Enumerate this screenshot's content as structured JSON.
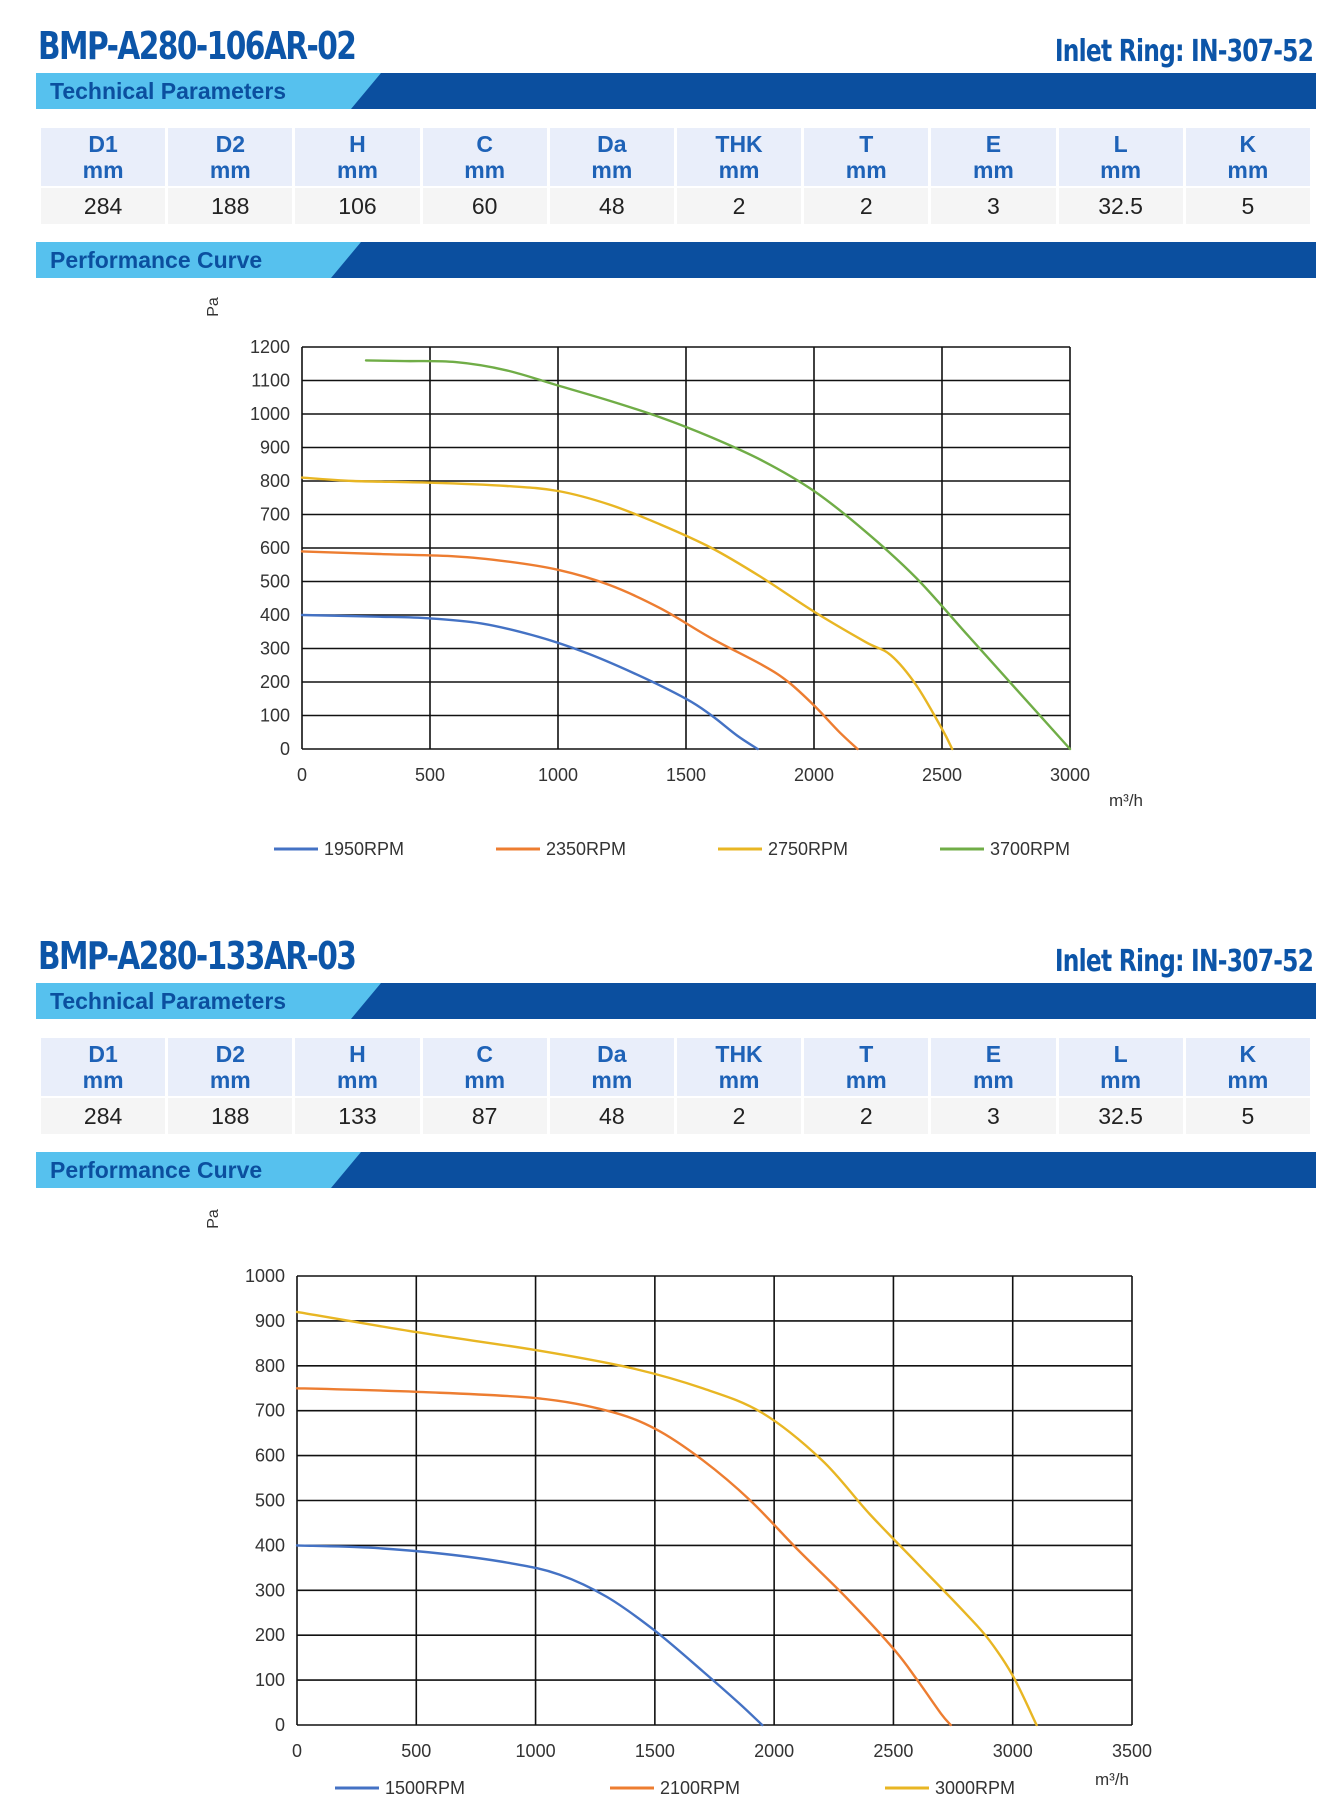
{
  "products": [
    {
      "model": "BMP-A280-106AR-02",
      "inlet_ring": "Inlet Ring: IN-307-52",
      "tech_title": "Technical Parameters",
      "perf_title": "Performance Curve",
      "params": [
        {
          "name": "D1",
          "unit": "mm",
          "value": "284"
        },
        {
          "name": "D2",
          "unit": "mm",
          "value": "188"
        },
        {
          "name": "H",
          "unit": "mm",
          "value": "106"
        },
        {
          "name": "C",
          "unit": "mm",
          "value": "60"
        },
        {
          "name": "Da",
          "unit": "mm",
          "value": "48"
        },
        {
          "name": "THK",
          "unit": "mm",
          "value": "2"
        },
        {
          "name": "T",
          "unit": "mm",
          "value": "2"
        },
        {
          "name": "E",
          "unit": "mm",
          "value": "3"
        },
        {
          "name": "L",
          "unit": "mm",
          "value": "32.5"
        },
        {
          "name": "K",
          "unit": "mm",
          "value": "5"
        }
      ]
    },
    {
      "model": "BMP-A280-133AR-03",
      "inlet_ring": "Inlet Ring: IN-307-52",
      "tech_title": "Technical Parameters",
      "perf_title": "Performance Curve",
      "params": [
        {
          "name": "D1",
          "unit": "mm",
          "value": "284"
        },
        {
          "name": "D2",
          "unit": "mm",
          "value": "188"
        },
        {
          "name": "H",
          "unit": "mm",
          "value": "133"
        },
        {
          "name": "C",
          "unit": "mm",
          "value": "87"
        },
        {
          "name": "Da",
          "unit": "mm",
          "value": "48"
        },
        {
          "name": "THK",
          "unit": "mm",
          "value": "2"
        },
        {
          "name": "T",
          "unit": "mm",
          "value": "2"
        },
        {
          "name": "E",
          "unit": "mm",
          "value": "3"
        },
        {
          "name": "L",
          "unit": "mm",
          "value": "32.5"
        },
        {
          "name": "K",
          "unit": "mm",
          "value": "5"
        }
      ]
    }
  ],
  "colors": {
    "brand_blue": "#0b4f9f",
    "light_blue": "#56c1ee",
    "title_blue": "#0c55a8"
  },
  "chart_data": [
    {
      "type": "line",
      "title": "",
      "xlabel": "m³/h",
      "ylabel": "Pa",
      "xlim": [
        0,
        3000
      ],
      "ylim": [
        0,
        1200
      ],
      "xticks": [
        0,
        500,
        1000,
        1500,
        2000,
        2500,
        3000
      ],
      "yticks": [
        0,
        100,
        200,
        300,
        400,
        500,
        600,
        700,
        800,
        900,
        1000,
        1100,
        1200
      ],
      "grid": true,
      "legend": "bottom",
      "series": [
        {
          "name": "1950RPM",
          "color": "#4472c4",
          "points": [
            [
              0,
              400
            ],
            [
              300,
              395
            ],
            [
              500,
              390
            ],
            [
              700,
              375
            ],
            [
              900,
              340
            ],
            [
              1100,
              290
            ],
            [
              1300,
              225
            ],
            [
              1500,
              150
            ],
            [
              1600,
              100
            ],
            [
              1700,
              40
            ],
            [
              1780,
              0
            ]
          ]
        },
        {
          "name": "2350RPM",
          "color": "#ed7d31",
          "points": [
            [
              0,
              590
            ],
            [
              300,
              582
            ],
            [
              600,
              575
            ],
            [
              800,
              560
            ],
            [
              1000,
              535
            ],
            [
              1200,
              490
            ],
            [
              1400,
              420
            ],
            [
              1600,
              330
            ],
            [
              1800,
              250
            ],
            [
              1900,
              200
            ],
            [
              2000,
              130
            ],
            [
              2100,
              50
            ],
            [
              2170,
              0
            ]
          ]
        },
        {
          "name": "2750RPM",
          "color": "#e8b623",
          "points": [
            [
              0,
              810
            ],
            [
              200,
              800
            ],
            [
              500,
              795
            ],
            [
              800,
              785
            ],
            [
              1000,
              770
            ],
            [
              1200,
              730
            ],
            [
              1400,
              670
            ],
            [
              1600,
              600
            ],
            [
              1800,
              510
            ],
            [
              2000,
              410
            ],
            [
              2200,
              320
            ],
            [
              2300,
              280
            ],
            [
              2400,
              190
            ],
            [
              2500,
              60
            ],
            [
              2540,
              0
            ]
          ]
        },
        {
          "name": "3700RPM",
          "color": "#70ad47",
          "points": [
            [
              250,
              1160
            ],
            [
              400,
              1158
            ],
            [
              600,
              1155
            ],
            [
              800,
              1130
            ],
            [
              1000,
              1085
            ],
            [
              1200,
              1040
            ],
            [
              1400,
              990
            ],
            [
              1600,
              930
            ],
            [
              1800,
              860
            ],
            [
              2000,
              770
            ],
            [
              2200,
              650
            ],
            [
              2400,
              510
            ],
            [
              2600,
              340
            ],
            [
              2800,
              170
            ],
            [
              3000,
              0
            ]
          ]
        }
      ]
    },
    {
      "type": "line",
      "title": "",
      "xlabel": "m³/h",
      "ylabel": "Pa",
      "xlim": [
        0,
        3500
      ],
      "ylim": [
        0,
        1000
      ],
      "xticks": [
        0,
        500,
        1000,
        1500,
        2000,
        2500,
        3000,
        3500
      ],
      "yticks": [
        0,
        100,
        200,
        300,
        400,
        500,
        600,
        700,
        800,
        900,
        1000
      ],
      "grid": true,
      "legend": "bottom",
      "series": [
        {
          "name": "1500RPM",
          "color": "#4472c4",
          "points": [
            [
              0,
              400
            ],
            [
              300,
              395
            ],
            [
              600,
              382
            ],
            [
              900,
              360
            ],
            [
              1100,
              335
            ],
            [
              1300,
              285
            ],
            [
              1500,
              210
            ],
            [
              1700,
              120
            ],
            [
              1850,
              50
            ],
            [
              1950,
              0
            ]
          ]
        },
        {
          "name": "2100RPM",
          "color": "#ed7d31",
          "points": [
            [
              0,
              750
            ],
            [
              500,
              742
            ],
            [
              1000,
              728
            ],
            [
              1300,
              700
            ],
            [
              1500,
              660
            ],
            [
              1700,
              590
            ],
            [
              1900,
              500
            ],
            [
              2100,
              390
            ],
            [
              2300,
              285
            ],
            [
              2500,
              170
            ],
            [
              2600,
              100
            ],
            [
              2700,
              25
            ],
            [
              2740,
              0
            ]
          ]
        },
        {
          "name": "3000RPM",
          "color": "#e8b623",
          "points": [
            [
              0,
              920
            ],
            [
              500,
              875
            ],
            [
              1000,
              835
            ],
            [
              1400,
              795
            ],
            [
              1700,
              750
            ],
            [
              1950,
              695
            ],
            [
              2200,
              590
            ],
            [
              2400,
              470
            ],
            [
              2600,
              360
            ],
            [
              2800,
              250
            ],
            [
              2900,
              190
            ],
            [
              3000,
              110
            ],
            [
              3100,
              0
            ]
          ]
        }
      ]
    }
  ]
}
